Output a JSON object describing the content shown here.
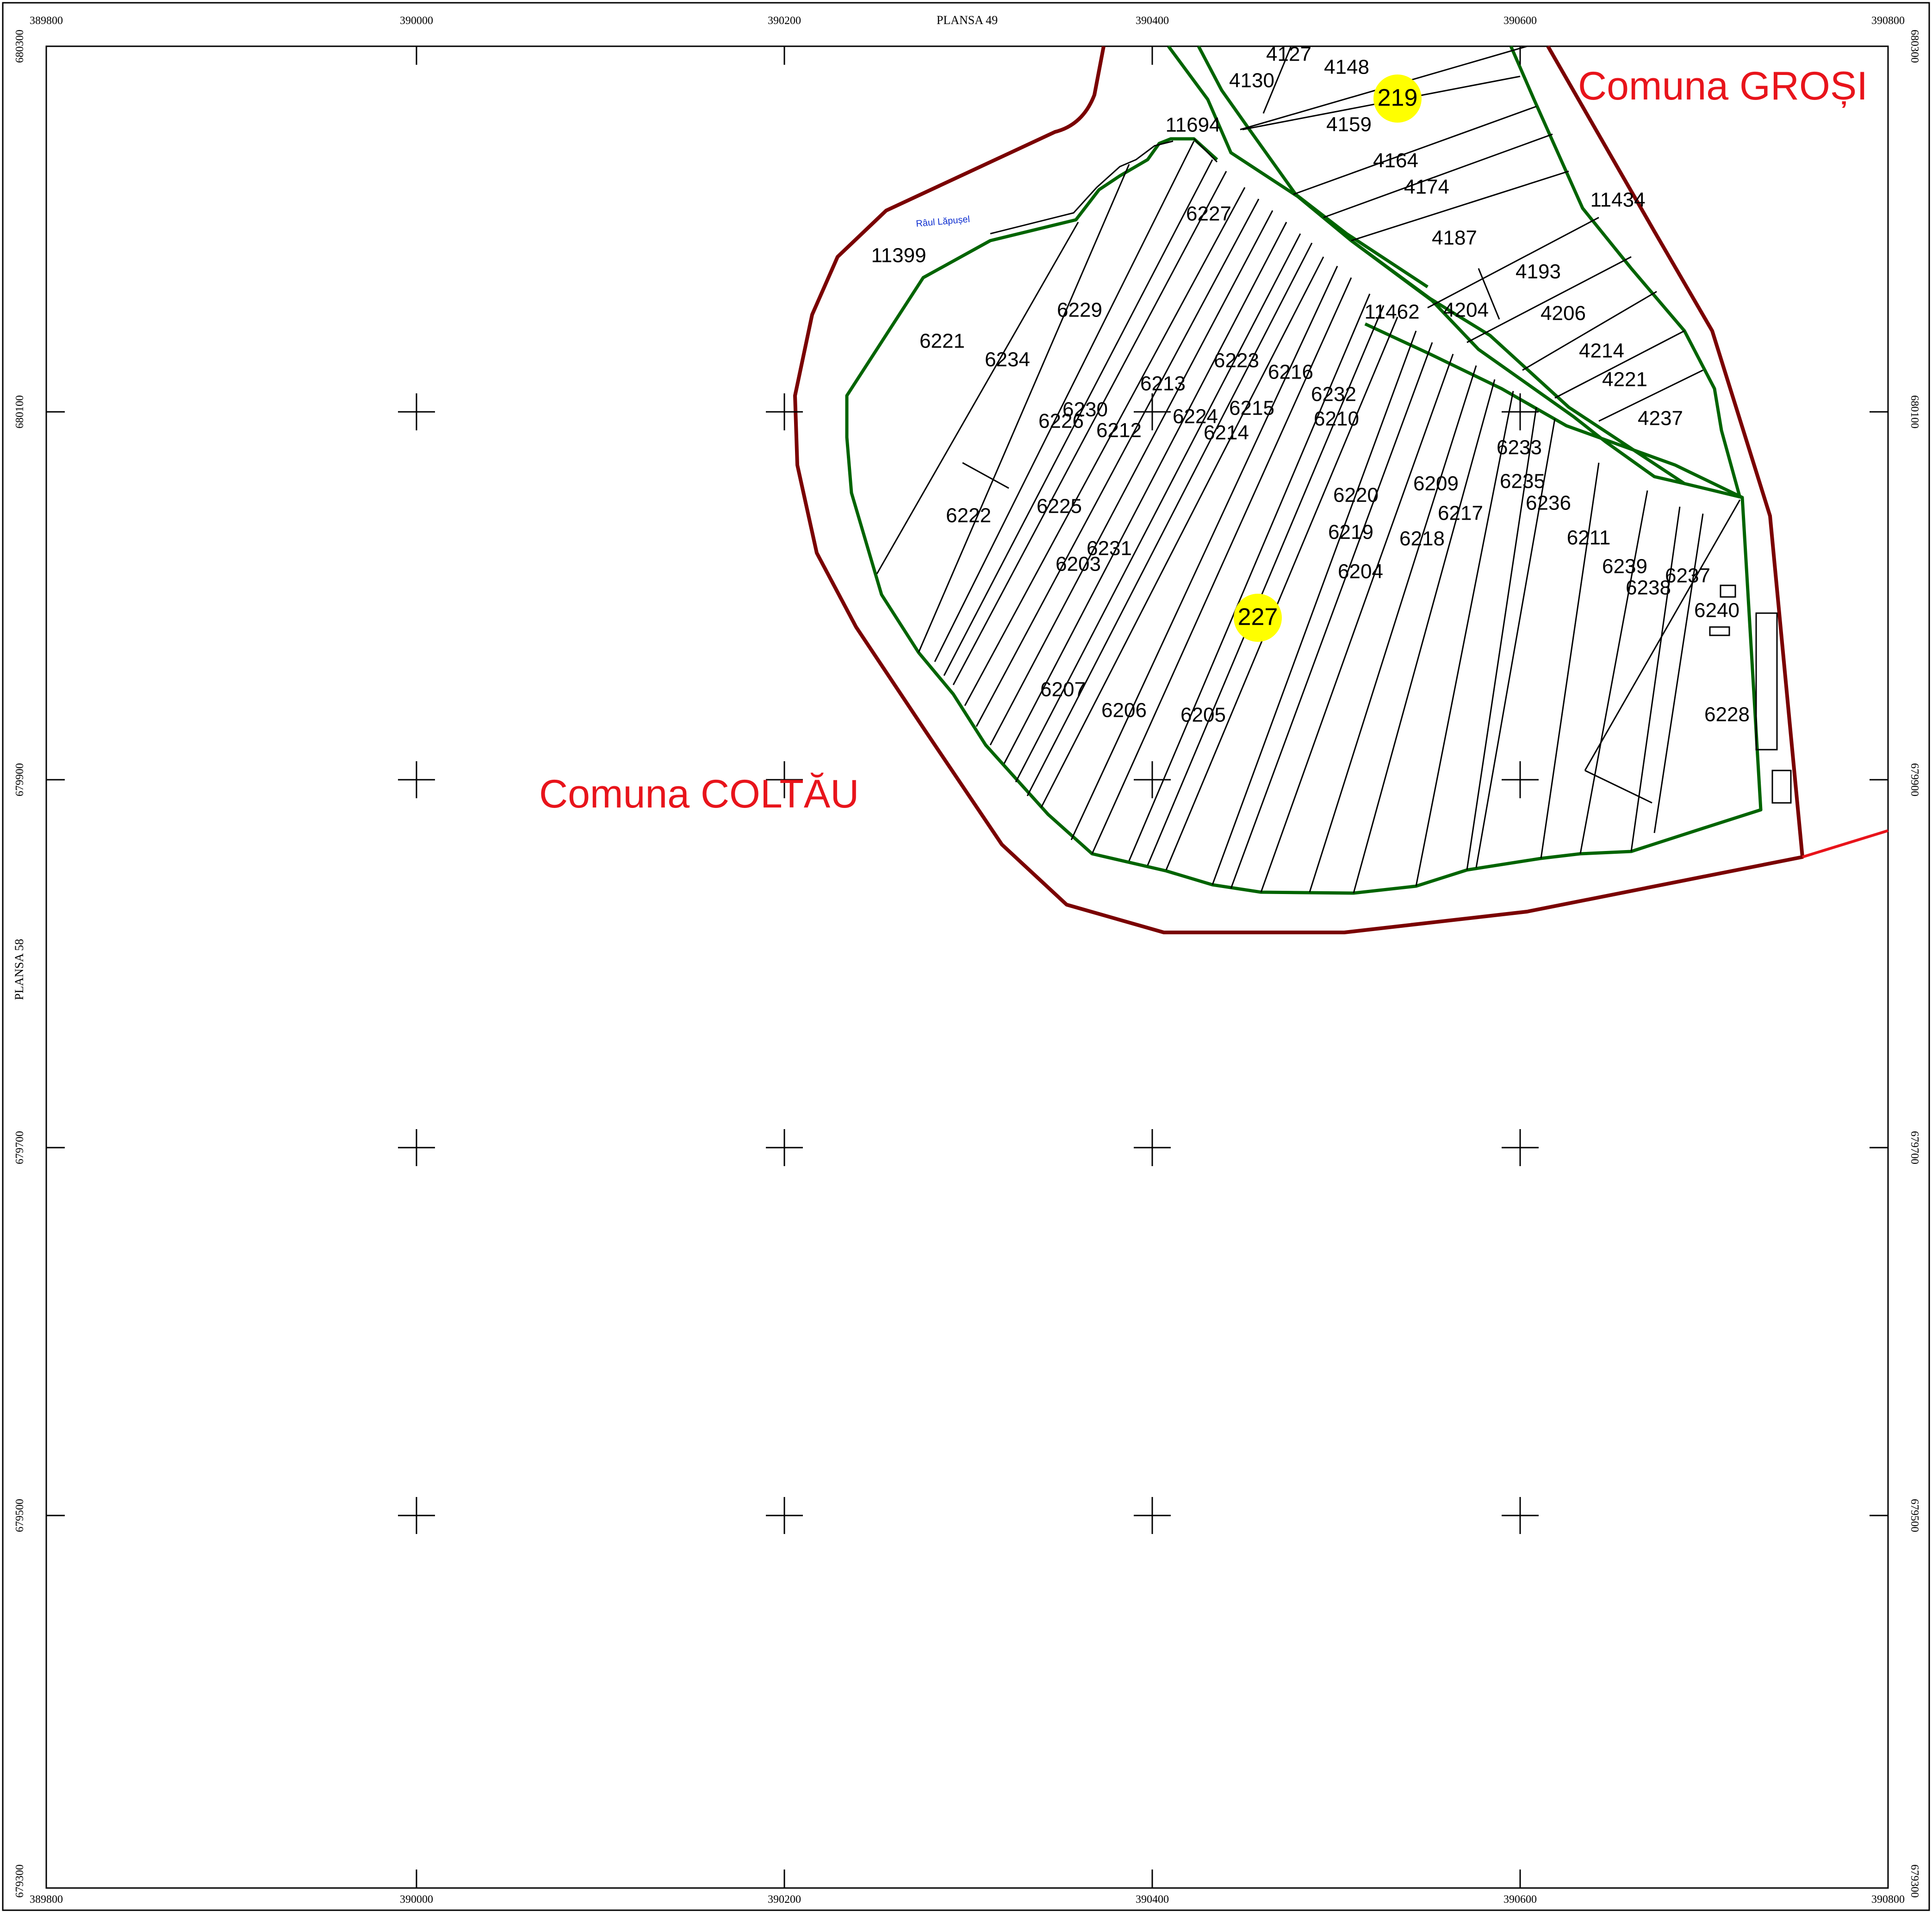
{
  "sheet_refs": {
    "top": "PLANSA 49",
    "left": "PLANSA 58"
  },
  "x_coords": [
    "389800",
    "390000",
    "390200",
    "390400",
    "390600",
    "390800"
  ],
  "y_coords": [
    "680300",
    "680100",
    "679900",
    "679700",
    "679500",
    "679300"
  ],
  "communes": [
    {
      "name": "Comuna GROȘI"
    },
    {
      "name": "Comuna COLTĂU"
    }
  ],
  "river": {
    "name": "Râul Lăpușel"
  },
  "highlights": [
    "219",
    "227"
  ],
  "parcels": [
    "4127",
    "4148",
    "4130",
    "4159",
    "11694",
    "4164",
    "4174",
    "11434",
    "4187",
    "6227",
    "11399",
    "4193",
    "6229",
    "11462",
    "4204",
    "4206",
    "6221",
    "6234",
    "4214",
    "6223",
    "6216",
    "6213",
    "4221",
    "6232",
    "6230",
    "6215",
    "4237",
    "6226",
    "6224",
    "6210",
    "6212",
    "6214",
    "6233",
    "6209",
    "6235",
    "6220",
    "6236",
    "6225",
    "6217",
    "6222",
    "6219",
    "6218",
    "6211",
    "6231",
    "6203",
    "6239",
    "6237",
    "6204",
    "6238",
    "6240",
    "6207",
    "6206",
    "6205",
    "6228"
  ],
  "colors": {
    "commune_boundary": "#7a0000",
    "parcel_boundary": "#006400",
    "highlight": "#ffff00",
    "commune_label": "#e8141b",
    "river_label": "#1030d0"
  }
}
